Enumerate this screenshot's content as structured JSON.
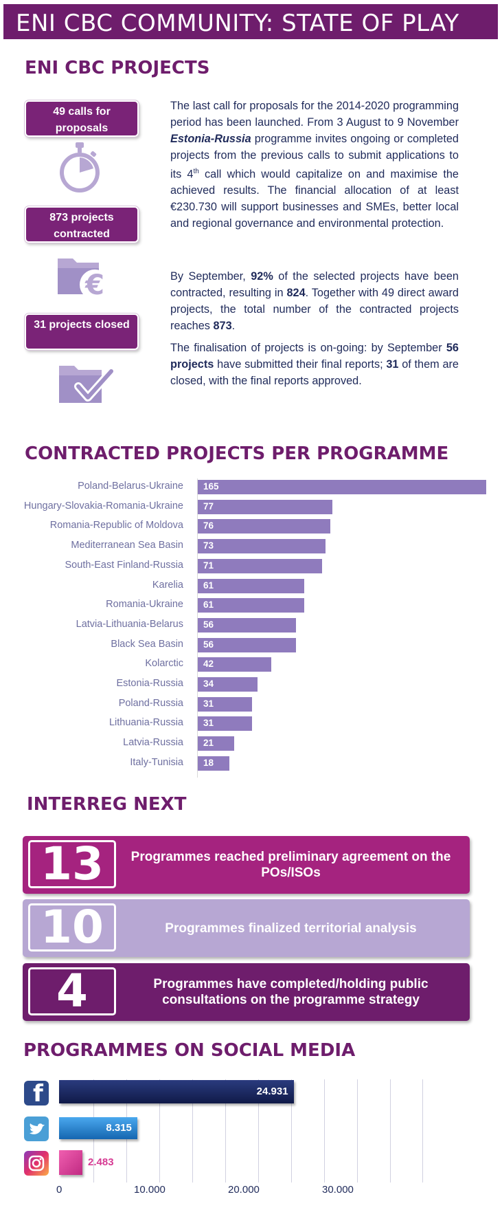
{
  "banner": {
    "title": "ENI CBC COMMUNITY: STATE OF PLAY"
  },
  "projects_section": {
    "heading": "ENI CBC PROJECTS",
    "stats": [
      {
        "label": "49 calls for proposals",
        "icon": "stopwatch-icon"
      },
      {
        "label": "873 projects contracted",
        "icon": "folder-euro-icon"
      },
      {
        "label": "31 projects closed",
        "icon": "folder-check-icon"
      }
    ],
    "paragraphs": {
      "p1_a": "The last call for proposals for the 2014-2020 programming period has been launched. From 3 August to 9 November ",
      "p1_b": "Estonia-Russia",
      "p1_c": " programme invites ongoing or completed projects from the previous calls to submit applications to its 4",
      "p1_sup": "th",
      "p1_d": " call which would capitalize on and maximise the achieved results. The financial allocation of at least €230.730 will support businesses and SMEs, better local and regional governance and environmental protection.",
      "p2_a": "By September, ",
      "p2_b": "92%",
      "p2_c": " of the selected projects have been contracted, resulting in ",
      "p2_d": "824",
      "p2_e": ". Together with 49 direct award projects, the total number of the contracted projects reaches ",
      "p2_f": "873",
      "p2_g": ".",
      "p3_a": "The finalisation of projects is on-going: by September ",
      "p3_b": "56 projects",
      "p3_c": " have submitted their final reports; ",
      "p3_d": "31",
      "p3_e": " of them are closed, with the final reports approved."
    }
  },
  "chart_data": [
    {
      "type": "bar",
      "orientation": "horizontal",
      "title": "CONTRACTED PROJECTS PER PROGRAMME",
      "categories": [
        "Poland-Belarus-Ukraine",
        "Hungary-Slovakia-Romania-Ukraine",
        "Romania-Republic of Moldova",
        "Mediterranean Sea Basin",
        "South-East Finland-Russia",
        "Karelia",
        "Romania-Ukraine",
        "Latvia-Lithuania-Belarus",
        "Black Sea Basin",
        "Kolarctic",
        "Estonia-Russia",
        "Poland-Russia",
        "Lithuania-Russia",
        "Latvia-Russia",
        "Italy-Tunisia"
      ],
      "values": [
        165,
        77,
        76,
        73,
        71,
        61,
        61,
        56,
        56,
        42,
        34,
        31,
        31,
        21,
        18
      ],
      "xlim": [
        0,
        165
      ],
      "color": "#8f7bbd"
    },
    {
      "type": "bar",
      "orientation": "horizontal",
      "title": "PROGRAMMES ON SOCIAL MEDIA",
      "categories": [
        "facebook-icon",
        "twitter-icon",
        "instagram-icon"
      ],
      "values": [
        24931,
        8315,
        2483
      ],
      "value_labels": [
        "24.931",
        "8.315",
        "2.483"
      ],
      "xlim": [
        0,
        40000
      ],
      "xticks": [
        {
          "value": 0,
          "label": "0"
        },
        {
          "value": 10000,
          "label": "10.000"
        },
        {
          "value": 20000,
          "label": "20.000"
        },
        {
          "value": 30000,
          "label": "30.000"
        }
      ],
      "colors": [
        "#15245e",
        "#1a7fd0",
        "#d63b93"
      ]
    }
  ],
  "interreg_section": {
    "heading": "INTERREG NEXT",
    "items": [
      {
        "number": "13",
        "text": "Programmes reached preliminary agreement on the POs/ISOs",
        "color": "#a5237f"
      },
      {
        "number": "10",
        "text": "Programmes finalized territorial analysis",
        "color": "#b7a7d3"
      },
      {
        "number": "4",
        "text": "Programmes have completed/holding public consultations on the programme strategy",
        "color": "#6e1d6c"
      }
    ]
  },
  "social_section": {
    "heading": "PROGRAMMES ON SOCIAL MEDIA"
  }
}
